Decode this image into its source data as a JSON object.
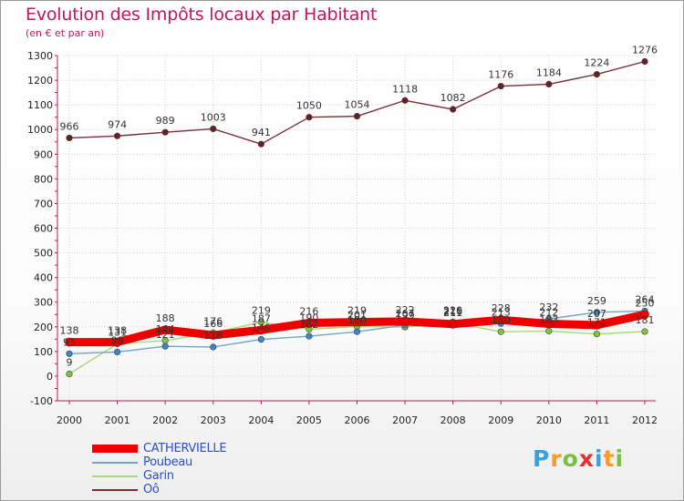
{
  "title": "Evolution des Impôts locaux par Habitant",
  "subtitle": "(en € et par an)",
  "logo": {
    "letters": [
      {
        "char": "P",
        "color": "#3ea1d6"
      },
      {
        "char": "r",
        "color": "#ff9a1f"
      },
      {
        "char": "o",
        "color": "#78c043"
      },
      {
        "char": "x",
        "color": "#e9302c"
      },
      {
        "char": "i",
        "color": "#3ea1d6"
      },
      {
        "char": "t",
        "color": "#ff9a1f"
      },
      {
        "char": "i",
        "color": "#78c043"
      }
    ]
  },
  "chart_data": {
    "type": "line",
    "title": "Evolution des Impôts locaux par Habitant",
    "subtitle": "(en € et par an)",
    "xlabel": "",
    "ylabel": "",
    "x": [
      2000,
      2001,
      2002,
      2003,
      2004,
      2005,
      2006,
      2007,
      2008,
      2009,
      2010,
      2011,
      2012
    ],
    "ylim": [
      -100,
      1300
    ],
    "yticks": [
      -100,
      0,
      100,
      200,
      300,
      400,
      500,
      600,
      700,
      800,
      900,
      1000,
      1100,
      1200,
      1300
    ],
    "grid": true,
    "legend_position": "bottom-left",
    "series": [
      {
        "name": "CATHERVIELLE",
        "color": "#ee0000",
        "line_style": "thick",
        "values": [
          138,
          138,
          188,
          166,
          187,
          216,
          219,
          222,
          211,
          228,
          212,
          207,
          250
        ],
        "labels": [
          "138",
          "138",
          "188",
          "166",
          "187",
          "216",
          "219",
          "222",
          "211",
          "228",
          "212",
          "207",
          "250"
        ]
      },
      {
        "name": "Poubeau",
        "color": "#6fa6ce",
        "marker_color": "#3d84c4",
        "line_style": "thin",
        "values": [
          91,
          98,
          121,
          118,
          149,
          162,
          180,
          207,
          220,
          213,
          232,
          259,
          264
        ],
        "labels": [
          "91",
          "98",
          "121",
          "118",
          "149",
          "162",
          "180",
          "207",
          "220",
          "213",
          "232",
          "259",
          "264"
        ]
      },
      {
        "name": "Garin",
        "color": "#a8da78",
        "marker_color": "#7ec440",
        "line_style": "thin",
        "values": [
          9,
          131,
          144,
          176,
          219,
          190,
          201,
          199,
          216,
          180,
          183,
          171,
          181
        ],
        "labels": [
          "9",
          "131",
          "144",
          "176",
          "219",
          "190",
          "201",
          "199",
          "216",
          "180",
          "183",
          "171",
          "181"
        ]
      },
      {
        "name": "Oô",
        "color": "#7a2f35",
        "marker_color": "#6a1d23",
        "line_style": "thin",
        "values": [
          966,
          974,
          989,
          1003,
          941,
          1050,
          1054,
          1118,
          1082,
          1176,
          1184,
          1224,
          1276
        ],
        "labels": [
          "966",
          "974",
          "989",
          "1003",
          "941",
          "1050",
          "1054",
          "1118",
          "1082",
          "1176",
          "1184",
          "1224",
          "1276"
        ]
      }
    ]
  }
}
